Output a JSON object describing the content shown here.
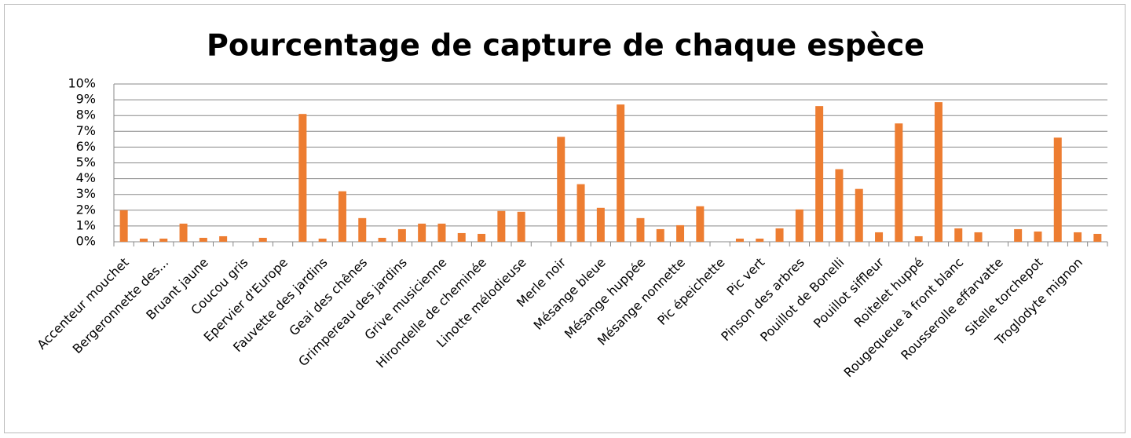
{
  "chart_data": {
    "type": "bar",
    "title": "Pourcentage de capture de chaque espèce",
    "categories": [
      "Accenteur mouchet",
      null,
      "Bergeronnette des...",
      null,
      "Bruant jaune",
      null,
      "Coucou gris",
      null,
      "Epervier d'Europe",
      null,
      "Fauvette des jardins",
      null,
      "Geai des chênes",
      null,
      "Grimpereau des jardins",
      null,
      "Grive musicienne",
      null,
      "Hirondelle de cheminée",
      null,
      "Linotte mélodieuse",
      null,
      "Merle noir",
      null,
      "Mésange bleue",
      null,
      "Mésange huppée",
      null,
      "Mésange nonnette",
      null,
      "Pic épeichette",
      null,
      "Pic vert",
      null,
      "Pinson des arbres",
      null,
      "Pouillot de Bonelli",
      null,
      "Pouillot siffleur",
      null,
      "Roitelet huppé",
      null,
      "Rougequeue à front blanc",
      null,
      "Rousserolle effarvatte",
      null,
      "Sitelle torchepot",
      null,
      "Troglodyte mignon",
      null
    ],
    "values": [
      2.0,
      0.2,
      0.2,
      1.15,
      0.25,
      0.35,
      0,
      0.25,
      0,
      8.1,
      0.2,
      3.2,
      1.5,
      0.25,
      0.8,
      1.15,
      1.15,
      0.55,
      0.5,
      1.95,
      1.9,
      0,
      6.65,
      3.65,
      2.15,
      8.7,
      1.5,
      0.8,
      1.05,
      2.25,
      0,
      0.2,
      0.2,
      0.85,
      2.05,
      8.6,
      4.6,
      3.35,
      0.6,
      7.5,
      0.35,
      8.85,
      0.85,
      0.6,
      0,
      0.8,
      0.65,
      6.6,
      0.6,
      0.5
    ],
    "color": "#ed7d31",
    "ylim": [
      0,
      10
    ],
    "yticks": [
      {
        "value": 0,
        "label": "0%"
      },
      {
        "value": 1,
        "label": "1%"
      },
      {
        "value": 2,
        "label": "2%"
      },
      {
        "value": 3,
        "label": "3%"
      },
      {
        "value": 4,
        "label": "4%"
      },
      {
        "value": 5,
        "label": "5%"
      },
      {
        "value": 6,
        "label": "6%"
      },
      {
        "value": 7,
        "label": "7%"
      },
      {
        "value": 8,
        "label": "8%"
      },
      {
        "value": 9,
        "label": "9%"
      },
      {
        "value": 10,
        "label": "10%"
      }
    ],
    "grid": true
  }
}
